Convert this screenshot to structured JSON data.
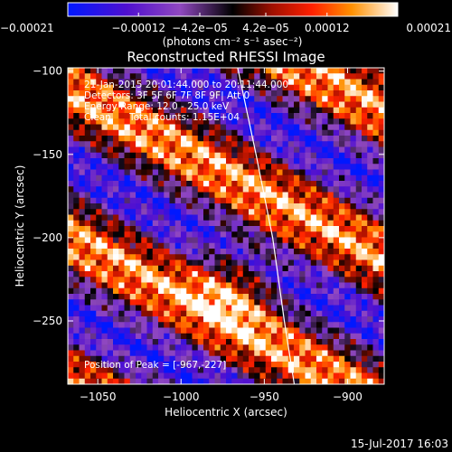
{
  "chart_data": {
    "type": "heatmap",
    "title": "Reconstructed RHESSI Image",
    "xlabel": "Heliocentric X (arcsec)",
    "ylabel": "Heliocentric Y (arcsec)",
    "xlim": [
      -1068,
      -878
    ],
    "ylim": [
      -288,
      -98
    ],
    "x_ticks": [
      -1050,
      -1000,
      -950,
      -900
    ],
    "x_tick_labels": [
      "−1050",
      "−1000",
      "−950",
      "−900"
    ],
    "y_ticks": [
      -250,
      -200,
      -150,
      -100
    ],
    "y_tick_labels": [
      "−250",
      "−200",
      "−150",
      "−100"
    ],
    "colorbar": {
      "range": [
        -0.00021,
        0.00021
      ],
      "ticks": [
        -0.00021,
        -0.00012,
        -4.2e-05,
        4.2e-05,
        0.00012,
        0.00021
      ],
      "tick_labels": [
        "−0.00021",
        "−0.00012",
        "−4.2e−05",
        "4.2e−05",
        "0.00012",
        "0.00021"
      ],
      "unit_label": "(photons cm⁻² s⁻¹ asec⁻²)"
    },
    "annotations": {
      "time": "21-Jan-2015 20:01:44.000 to 20:11:44.000",
      "detectors": "Detectors: 3F 5F 6F 7F 8F 9F| Att 0",
      "energy": "Energy Range: 12.0 - 25.0 keV",
      "method": "Clean",
      "counts": "Total counts: 1.15E+04",
      "peak": "Position of Peak = [-967,-227]"
    },
    "peak": {
      "x": -967,
      "y": -227
    },
    "limb": [
      {
        "x": -966,
        "y": -98
      },
      {
        "x": -955,
        "y": -150
      },
      {
        "x": -945,
        "y": -200
      },
      {
        "x": -938,
        "y": -250
      },
      {
        "x": -932,
        "y": -288
      }
    ],
    "map": {
      "nx": 56,
      "ny": 56,
      "band_angle_deg": 28,
      "band_period_arcsec": 78,
      "amplitude": 0.00019
    },
    "grid": false
  },
  "footer": {
    "date": "15-Jul-2017 16:03"
  }
}
